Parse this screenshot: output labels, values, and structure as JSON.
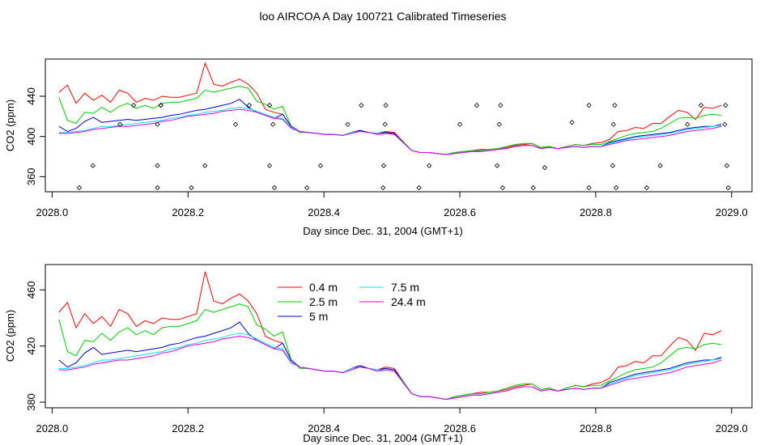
{
  "figure": {
    "title": "loo AIRCOA A  Day 100721  Calibrated Timeseries"
  },
  "colors": {
    "s04": "#ff0000",
    "s25": "#00cc00",
    "s5": "#0000cc",
    "s75": "#00e5ee",
    "s244": "#e000e0",
    "axis": "#000000"
  },
  "chart_data": [
    {
      "type": "line",
      "title": "",
      "xlabel": "Day since Dec. 31, 2004 (GMT+1)",
      "ylabel": "CO2 (ppm)",
      "xlim": [
        2027.99,
        2029.03
      ],
      "ylim": [
        345,
        477
      ],
      "xticks": [
        "2028.0",
        "2028.2",
        "2028.4",
        "2028.6",
        "2028.8",
        "2029.0"
      ],
      "yticks": [
        "360",
        "400",
        "440"
      ],
      "grid": false,
      "legend": "none",
      "series": [
        {
          "key": "s04",
          "y": [
            444,
            451,
            433,
            443,
            436,
            441,
            434,
            446,
            443,
            434,
            438,
            436,
            440,
            439,
            439,
            441,
            443,
            473,
            452,
            450,
            454,
            457,
            452,
            443,
            427,
            424,
            422,
            410,
            405,
            404,
            403,
            402,
            402,
            401,
            404,
            406,
            404,
            403,
            405,
            404,
            395,
            386,
            384,
            384,
            383,
            382,
            384,
            385,
            386,
            387,
            387,
            388,
            389,
            391,
            392,
            393,
            389,
            390,
            388,
            390,
            392,
            391,
            393,
            394,
            397,
            405,
            406,
            409,
            408,
            413,
            413,
            420,
            426,
            424,
            417,
            429,
            428,
            431
          ]
        },
        {
          "key": "s25",
          "y": [
            439,
            416,
            413,
            424,
            423,
            429,
            424,
            430,
            433,
            428,
            431,
            428,
            433,
            434,
            434,
            436,
            438,
            446,
            444,
            446,
            448,
            450,
            448,
            435,
            432,
            427,
            430,
            410,
            404,
            404,
            403,
            402,
            402,
            401,
            404,
            406,
            404,
            403,
            404,
            403,
            395,
            386,
            384,
            384,
            383,
            382,
            384,
            385,
            386,
            386,
            387,
            388,
            390,
            392,
            393,
            393,
            389,
            390,
            388,
            390,
            392,
            391,
            392,
            392,
            395,
            398,
            401,
            403,
            404,
            405,
            408,
            413,
            418,
            419,
            418,
            421,
            422,
            421
          ]
        },
        {
          "key": "s5",
          "y": [
            410,
            405,
            408,
            415,
            419,
            414,
            415,
            416,
            417,
            416,
            417,
            418,
            419,
            421,
            422,
            424,
            426,
            427,
            429,
            431,
            433,
            437,
            429,
            424,
            421,
            418,
            422,
            410,
            405,
            404,
            403,
            402,
            402,
            401,
            404,
            406,
            404,
            403,
            404,
            403,
            394,
            386,
            384,
            384,
            383,
            382,
            383,
            384,
            385,
            385,
            386,
            387,
            388,
            390,
            391,
            391,
            388,
            389,
            388,
            389,
            390,
            389,
            390,
            390,
            394,
            396,
            398,
            400,
            401,
            402,
            403,
            404,
            406,
            408,
            409,
            410,
            410,
            412
          ]
        },
        {
          "key": "s75",
          "y": [
            404,
            404,
            405,
            406,
            408,
            410,
            410,
            411,
            412,
            413,
            414,
            415,
            416,
            418,
            419,
            421,
            422,
            424,
            425,
            426,
            428,
            429,
            428,
            425,
            422,
            419,
            418,
            409,
            405,
            404,
            403,
            402,
            402,
            401,
            404,
            405,
            404,
            403,
            403,
            402,
            394,
            386,
            384,
            384,
            383,
            382,
            383,
            384,
            385,
            385,
            386,
            387,
            388,
            390,
            391,
            391,
            388,
            389,
            388,
            389,
            390,
            389,
            390,
            390,
            393,
            395,
            397,
            399,
            400,
            401,
            402,
            403,
            405,
            407,
            408,
            409,
            410,
            411
          ]
        },
        {
          "key": "s244",
          "y": [
            403,
            403,
            404,
            405,
            407,
            408,
            409,
            410,
            410,
            411,
            412,
            413,
            415,
            416,
            418,
            420,
            421,
            422,
            423,
            425,
            426,
            427,
            426,
            424,
            421,
            418,
            417,
            408,
            405,
            404,
            403,
            402,
            402,
            401,
            403,
            405,
            404,
            402,
            403,
            402,
            394,
            386,
            384,
            384,
            383,
            382,
            383,
            384,
            385,
            385,
            386,
            387,
            388,
            390,
            391,
            391,
            388,
            389,
            388,
            389,
            390,
            389,
            390,
            390,
            392,
            394,
            396,
            397,
            398,
            399,
            400,
            401,
            403,
            405,
            406,
            407,
            408,
            410
          ]
        }
      ],
      "markers": {
        "x": [
          2028.04,
          2028.06,
          2028.1,
          2028.12,
          2028.155,
          2028.155,
          2028.155,
          2028.16,
          2028.16,
          2028.205,
          2028.225,
          2028.27,
          2028.29,
          2028.32,
          2028.32,
          2028.325,
          2028.327,
          2028.375,
          2028.395,
          2028.435,
          2028.455,
          2028.487,
          2028.488,
          2028.49,
          2028.491,
          2028.54,
          2028.555,
          2028.6,
          2028.625,
          2028.655,
          2028.658,
          2028.66,
          2028.663,
          2028.708,
          2028.725,
          2028.765,
          2028.79,
          2028.79,
          2028.825,
          2028.826,
          2028.828,
          2028.83,
          2028.875,
          2028.895,
          2028.935,
          2028.955,
          2028.99,
          2028.991,
          2028.993,
          2028.995
        ],
        "y": [
          349,
          371,
          412,
          431,
          349,
          371,
          412,
          431,
          431,
          349,
          371,
          412,
          431,
          371,
          431,
          412,
          349,
          349,
          371,
          412,
          431,
          349,
          371,
          412,
          431,
          349,
          371,
          412,
          431,
          371,
          412,
          431,
          349,
          349,
          369,
          414,
          349,
          431,
          371,
          412,
          431,
          349,
          349,
          371,
          412,
          431,
          412,
          431,
          371,
          349
        ]
      }
    },
    {
      "type": "line",
      "title": "",
      "xlabel": "Day since Dec. 31, 2004 (GMT+1)",
      "ylabel": "CO2 (ppm)",
      "xlim": [
        2027.99,
        2029.03
      ],
      "ylim": [
        376,
        478
      ],
      "xticks": [
        "2028.0",
        "2028.2",
        "2028.4",
        "2028.6",
        "2028.8",
        "2029.0"
      ],
      "yticks": [
        "380",
        "420",
        "460"
      ],
      "grid": false,
      "legend": "top-left",
      "legend_entries": [
        {
          "key": "s04",
          "label": "0.4 m"
        },
        {
          "key": "s25",
          "label": "2.5 m"
        },
        {
          "key": "s5",
          "label": "5 m"
        },
        {
          "key": "s75",
          "label": "7.5 m"
        },
        {
          "key": "s244",
          "label": "24.4 m"
        }
      ],
      "series": "same as first panel"
    }
  ]
}
